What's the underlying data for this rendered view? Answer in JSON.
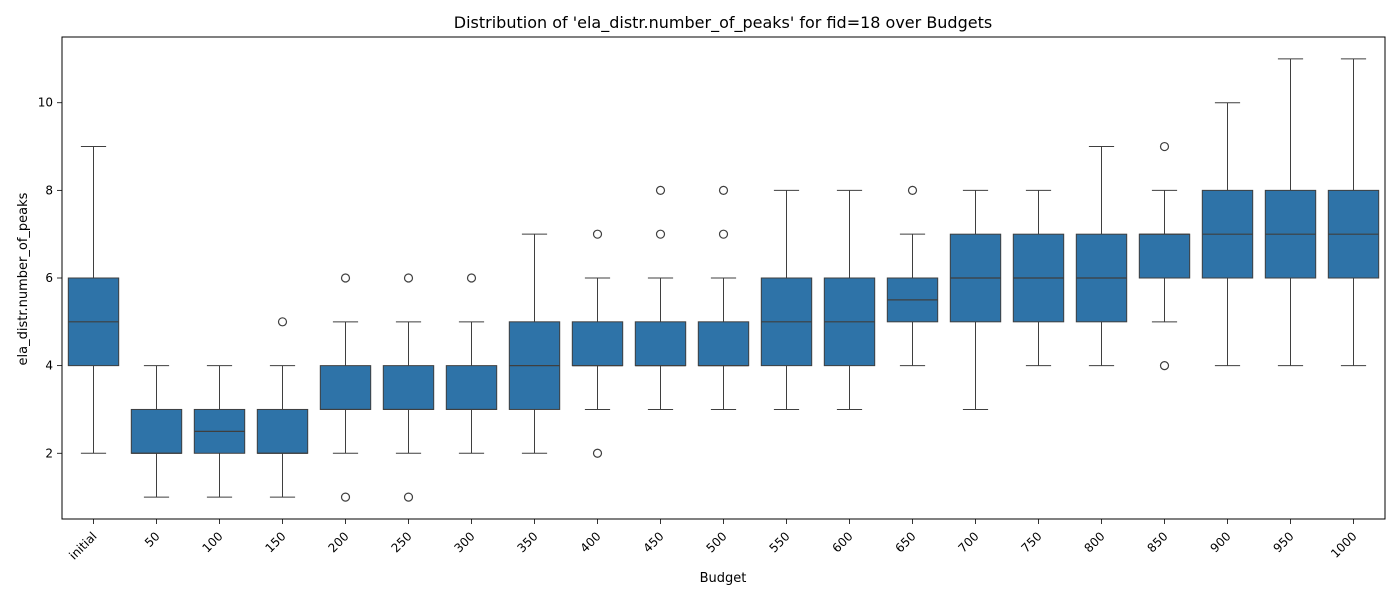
{
  "chart_data": {
    "type": "box",
    "title": "Distribution of 'ela_distr.number_of_peaks' for fid=18 over Budgets",
    "xlabel": "Budget",
    "ylabel": "ela_distr.number_of_peaks",
    "ylim": [
      0.5,
      11.5
    ],
    "yticks": [
      2,
      4,
      6,
      8,
      10
    ],
    "color": "#2e73a8",
    "categories": [
      "initial",
      "50",
      "100",
      "150",
      "200",
      "250",
      "300",
      "350",
      "400",
      "450",
      "500",
      "550",
      "600",
      "650",
      "700",
      "750",
      "800",
      "850",
      "900",
      "950",
      "1000"
    ],
    "boxes": [
      {
        "q1": 4,
        "median": 5,
        "q3": 6,
        "whislo": 2,
        "whishi": 9,
        "fliers": []
      },
      {
        "q1": 2,
        "median": 2,
        "q3": 3,
        "whislo": 1,
        "whishi": 4,
        "fliers": []
      },
      {
        "q1": 2,
        "median": 2.5,
        "q3": 3,
        "whislo": 1,
        "whishi": 4,
        "fliers": []
      },
      {
        "q1": 2,
        "median": 2,
        "q3": 3,
        "whislo": 1,
        "whishi": 4,
        "fliers": [
          5
        ]
      },
      {
        "q1": 3,
        "median": 3,
        "q3": 4,
        "whislo": 2,
        "whishi": 5,
        "fliers": [
          6,
          1
        ]
      },
      {
        "q1": 3,
        "median": 3,
        "q3": 4,
        "whislo": 2,
        "whishi": 5,
        "fliers": [
          6,
          1
        ]
      },
      {
        "q1": 3,
        "median": 3,
        "q3": 4,
        "whislo": 2,
        "whishi": 5,
        "fliers": [
          6
        ]
      },
      {
        "q1": 3,
        "median": 4,
        "q3": 5,
        "whislo": 2,
        "whishi": 7,
        "fliers": []
      },
      {
        "q1": 4,
        "median": 4,
        "q3": 5,
        "whislo": 3,
        "whishi": 6,
        "fliers": [
          7,
          2
        ]
      },
      {
        "q1": 4,
        "median": 4,
        "q3": 5,
        "whislo": 3,
        "whishi": 6,
        "fliers": [
          7,
          8
        ]
      },
      {
        "q1": 4,
        "median": 4,
        "q3": 5,
        "whislo": 3,
        "whishi": 6,
        "fliers": [
          7,
          8
        ]
      },
      {
        "q1": 4,
        "median": 5,
        "q3": 6,
        "whislo": 3,
        "whishi": 8,
        "fliers": []
      },
      {
        "q1": 4,
        "median": 5,
        "q3": 6,
        "whislo": 3,
        "whishi": 8,
        "fliers": []
      },
      {
        "q1": 5,
        "median": 5.5,
        "q3": 6,
        "whislo": 4,
        "whishi": 7,
        "fliers": [
          8
        ]
      },
      {
        "q1": 5,
        "median": 6,
        "q3": 7,
        "whislo": 3,
        "whishi": 8,
        "fliers": []
      },
      {
        "q1": 5,
        "median": 6,
        "q3": 7,
        "whislo": 4,
        "whishi": 8,
        "fliers": []
      },
      {
        "q1": 5,
        "median": 6,
        "q3": 7,
        "whislo": 4,
        "whishi": 9,
        "fliers": []
      },
      {
        "q1": 6,
        "median": 7,
        "q3": 7,
        "whislo": 5,
        "whishi": 8,
        "fliers": [
          9,
          4
        ]
      },
      {
        "q1": 6,
        "median": 7,
        "q3": 8,
        "whislo": 4,
        "whishi": 10,
        "fliers": []
      },
      {
        "q1": 6,
        "median": 7,
        "q3": 8,
        "whislo": 4,
        "whishi": 11,
        "fliers": []
      },
      {
        "q1": 6,
        "median": 7,
        "q3": 8,
        "whislo": 4,
        "whishi": 11,
        "fliers": []
      }
    ]
  }
}
